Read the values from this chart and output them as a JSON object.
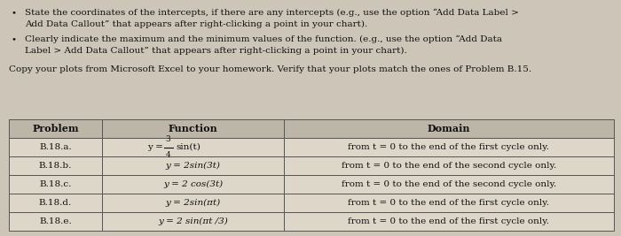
{
  "bullet1_line1": "State the coordinates of the intercepts, if there are any intercepts (e.g., use the option “Add Data Label >",
  "bullet1_line2": "Add Data Callout” that appears after right-clicking a point in your chart).",
  "bullet2_line1": "Clearly indicate the maximum and the minimum values of the function. (e.g., use the option “Add Data",
  "bullet2_line2": "Label > Add Data Callout” that appears after right-clicking a point in your chart).",
  "copy_text": "Copy your plots from Microsoft Excel to your homework. Verify that your plots match the ones of Problem B.15.",
  "table_headers": [
    "Problem",
    "Function",
    "Domain"
  ],
  "table_rows": [
    [
      "B.18.a.",
      "",
      "from t = 0 to the end of the first cycle only."
    ],
    [
      "B.18.b.",
      "y = 2sin(3t)",
      "from t = 0 to the end of the second cycle only."
    ],
    [
      "B.18.c.",
      "y = 2 cos(3t)",
      "from t = 0 to the end of the second cycle only."
    ],
    [
      "B.18.d.",
      "y = 2sin(πt)",
      "from t = 0 to the end of the first cycle only."
    ],
    [
      "B.18.e.",
      "y = 2 sin(πt /3)",
      "from t = 0 to the end of the first cycle only."
    ]
  ],
  "bg_color": "#cdc5b8",
  "table_bg": "#ddd6c9",
  "header_bg": "#bdb5a8",
  "border_color": "#555555",
  "text_color": "#111111",
  "font_size": 7.5,
  "header_font_size": 8.0
}
